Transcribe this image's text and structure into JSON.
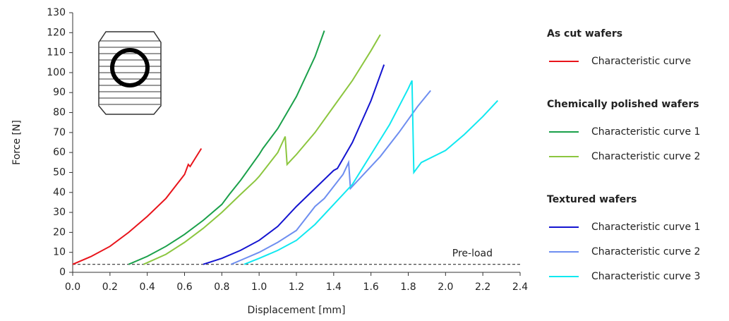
{
  "chart_data": {
    "type": "line",
    "x_label": "Displacement [mm]",
    "y_label": "Force [N]",
    "xlim": [
      0,
      2.4
    ],
    "ylim": [
      0,
      130
    ],
    "xticks": [
      {
        "value": 0,
        "label": "0.0"
      },
      0.2,
      0.4,
      0.6,
      0.8,
      {
        "value": 1,
        "label": "1.0"
      },
      1.2,
      1.4,
      1.6,
      1.8,
      {
        "value": 2,
        "label": "2.0"
      },
      2.2,
      2.4
    ],
    "yticks": [
      0,
      10,
      20,
      30,
      40,
      50,
      60,
      70,
      80,
      90,
      100,
      110,
      120,
      130
    ],
    "reference_line": {
      "label": "Pre-load",
      "value": 4,
      "style": "dashed",
      "color": "#333333"
    },
    "series_groups": [
      {
        "title": "As cut wafers",
        "series": [
          {
            "name": "Characteristic curve",
            "color": "#e8141b",
            "x": [
              0,
              0.1,
              0.2,
              0.3,
              0.4,
              0.5,
              0.6,
              0.62,
              0.63,
              0.69
            ],
            "values": [
              4,
              8,
              13,
              20,
              28,
              37,
              49,
              54,
              53,
              62
            ]
          }
        ]
      },
      {
        "title": "Chemically polished wafers",
        "series": [
          {
            "name": "Characteristic curve 1",
            "color": "#1aa04a",
            "x": [
              0.3,
              0.4,
              0.5,
              0.6,
              0.7,
              0.8,
              0.84,
              0.9,
              1.0,
              1.02,
              1.1,
              1.2,
              1.3,
              1.35
            ],
            "values": [
              4,
              8,
              13,
              19,
              26,
              34,
              39,
              46,
              59,
              62,
              72,
              88,
              108,
              121
            ]
          },
          {
            "name": "Characteristic curve 2",
            "color": "#8cc63f",
            "x": [
              0.38,
              0.5,
              0.6,
              0.7,
              0.8,
              0.9,
              0.98,
              1.0,
              1.1,
              1.14,
              1.15,
              1.2,
              1.3,
              1.4,
              1.5,
              1.6,
              1.65
            ],
            "values": [
              4,
              9,
              15,
              22,
              30,
              39,
              46,
              48,
              60,
              68,
              54,
              59,
              70,
              83,
              96,
              111,
              119
            ]
          }
        ]
      },
      {
        "title": "Textured wafers",
        "series": [
          {
            "name": "Characteristic curve 1",
            "color": "#1414d0",
            "x": [
              0.7,
              0.8,
              0.9,
              1.0,
              1.1,
              1.2,
              1.3,
              1.4,
              1.42,
              1.5,
              1.6,
              1.67
            ],
            "values": [
              4,
              7,
              11,
              16,
              23,
              33,
              42,
              51,
              52,
              65,
              86,
              104
            ]
          },
          {
            "name": "Characteristic curve 2",
            "color": "#6e8ef0",
            "x": [
              0.85,
              0.9,
              1.0,
              1.1,
              1.2,
              1.3,
              1.35,
              1.45,
              1.48,
              1.49,
              1.55,
              1.65,
              1.75,
              1.85,
              1.92
            ],
            "values": [
              4,
              6,
              10,
              15,
              21,
              33,
              37,
              49,
              55,
              42,
              48,
              58,
              70,
              83,
              91
            ]
          },
          {
            "name": "Characteristic curve 3",
            "color": "#10e8f0",
            "x": [
              0.92,
              1.0,
              1.1,
              1.2,
              1.3,
              1.4,
              1.5,
              1.6,
              1.7,
              1.8,
              1.82,
              1.83,
              1.87,
              2.0,
              2.1,
              2.2,
              2.28
            ],
            "values": [
              4,
              7,
              11,
              16,
              24,
              34,
              44,
              59,
              74,
              92,
              96,
              50,
              55,
              61,
              69,
              78,
              86
            ]
          }
        ]
      }
    ]
  }
}
